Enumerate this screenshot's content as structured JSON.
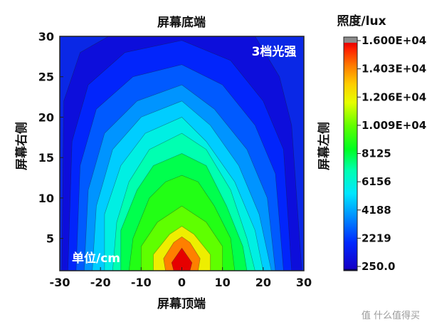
{
  "chart_data": {
    "type": "heatmap",
    "title": "",
    "xlabel_bottom": "屏幕顶端",
    "xlabel_top": "屏幕底端",
    "ylabel_left": "屏幕右侧",
    "ylabel_right": "屏幕左侧",
    "xlim": [
      -30,
      30
    ],
    "ylim": [
      1,
      30
    ],
    "x_ticks": [
      "-30",
      "-20",
      "-10",
      "0",
      "10",
      "20",
      "30"
    ],
    "y_ticks": [
      "5",
      "10",
      "15",
      "20",
      "25",
      "30"
    ],
    "annotations": {
      "mode": "3档光强",
      "unit": "单位/cm"
    },
    "colorbar": {
      "title": "照度/lux",
      "min": 250,
      "max": 16000,
      "tick_labels": [
        "1.600E+04",
        "1.403E+04",
        "1.206E+04",
        "1.009E+04",
        "8125",
        "6156",
        "4188",
        "2219",
        "250.0"
      ]
    },
    "peak": {
      "x": 0,
      "y": 1,
      "value": 16000
    },
    "contour_lux": [
      {
        "lux": 16000,
        "points": [
          [
            -2,
            1
          ],
          [
            -2.5,
            2
          ],
          [
            0,
            3.8
          ],
          [
            2.5,
            2
          ],
          [
            2,
            1
          ]
        ]
      },
      {
        "lux": 14000,
        "points": [
          [
            -4,
            1
          ],
          [
            -4.5,
            2.5
          ],
          [
            -2,
            4.5
          ],
          [
            0,
            5.2
          ],
          [
            2,
            4.5
          ],
          [
            4.5,
            2.5
          ],
          [
            4,
            1
          ]
        ]
      },
      {
        "lux": 12000,
        "points": [
          [
            -7,
            1
          ],
          [
            -7,
            3
          ],
          [
            -3,
            5.5
          ],
          [
            0,
            6.5
          ],
          [
            3,
            5.5
          ],
          [
            7,
            3
          ],
          [
            7,
            1
          ]
        ]
      },
      {
        "lux": 10000,
        "points": [
          [
            -10,
            1
          ],
          [
            -10,
            4
          ],
          [
            -6,
            7
          ],
          [
            0,
            9
          ],
          [
            6,
            7
          ],
          [
            10,
            4
          ],
          [
            10,
            1
          ]
        ]
      },
      {
        "lux": 9000,
        "points": [
          [
            -13,
            1
          ],
          [
            -12,
            5
          ],
          [
            -8,
            10
          ],
          [
            -4,
            12
          ],
          [
            0,
            12.8
          ],
          [
            4,
            12
          ],
          [
            8,
            9
          ],
          [
            12,
            5
          ],
          [
            13,
            1
          ]
        ]
      },
      {
        "lux": 8000,
        "points": [
          [
            -15,
            1
          ],
          [
            -15,
            6
          ],
          [
            -11,
            11
          ],
          [
            -7,
            14
          ],
          [
            0,
            15.5
          ],
          [
            6,
            14
          ],
          [
            11,
            9
          ],
          [
            15,
            4
          ],
          [
            16,
            1
          ]
        ]
      },
      {
        "lux": 7000,
        "points": [
          [
            -17,
            1
          ],
          [
            -16,
            7
          ],
          [
            -13,
            12
          ],
          [
            -8,
            16
          ],
          [
            0,
            18
          ],
          [
            6,
            16
          ],
          [
            12,
            11
          ],
          [
            16,
            5
          ],
          [
            18,
            1
          ]
        ]
      },
      {
        "lux": 6000,
        "points": [
          [
            -19,
            1
          ],
          [
            -19,
            8
          ],
          [
            -15,
            14
          ],
          [
            -9,
            18
          ],
          [
            0,
            20
          ],
          [
            6,
            17
          ],
          [
            13,
            12
          ],
          [
            18,
            6
          ],
          [
            20,
            1
          ]
        ]
      },
      {
        "lux": 5000,
        "points": [
          [
            -22,
            1
          ],
          [
            -21,
            9
          ],
          [
            -17,
            16
          ],
          [
            -10,
            20
          ],
          [
            0,
            22
          ],
          [
            7,
            19
          ],
          [
            14,
            14
          ],
          [
            19,
            8
          ],
          [
            22,
            1
          ]
        ]
      },
      {
        "lux": 4000,
        "points": [
          [
            -24,
            1
          ],
          [
            -23,
            11
          ],
          [
            -19,
            18
          ],
          [
            -11,
            22
          ],
          [
            0,
            24
          ],
          [
            8,
            21
          ],
          [
            16,
            16
          ],
          [
            21,
            10
          ],
          [
            23,
            1
          ]
        ]
      },
      {
        "lux": 3000,
        "points": [
          [
            -26,
            1
          ],
          [
            -25,
            14
          ],
          [
            -21,
            21
          ],
          [
            -12,
            25
          ],
          [
            0,
            26.5
          ],
          [
            10,
            24
          ],
          [
            18,
            19
          ],
          [
            23,
            13
          ],
          [
            25,
            1
          ]
        ]
      },
      {
        "lux": 2000,
        "points": [
          [
            -28,
            1
          ],
          [
            -27,
            17
          ],
          [
            -23,
            24
          ],
          [
            -14,
            28
          ],
          [
            0,
            29.5
          ],
          [
            12,
            27
          ],
          [
            20,
            22
          ],
          [
            25,
            16
          ],
          [
            27,
            1
          ]
        ]
      },
      {
        "lux": 1000,
        "points": [
          [
            -29.5,
            1
          ],
          [
            -29,
            22
          ],
          [
            -25,
            28
          ],
          [
            -18,
            30
          ],
          [
            18,
            30
          ],
          [
            24,
            25
          ],
          [
            27,
            19
          ],
          [
            29.5,
            1
          ]
        ]
      }
    ],
    "colors": {
      "background": "#0a28e6",
      "stops": [
        "#000000",
        "#0000dc",
        "#0064ff",
        "#00dcff",
        "#00ffb4",
        "#00ff00",
        "#b4ff00",
        "#ffff00",
        "#ffb400",
        "#ff5000",
        "#e60000",
        "#7a7a7a"
      ]
    }
  },
  "watermark": "值 什么值得买"
}
